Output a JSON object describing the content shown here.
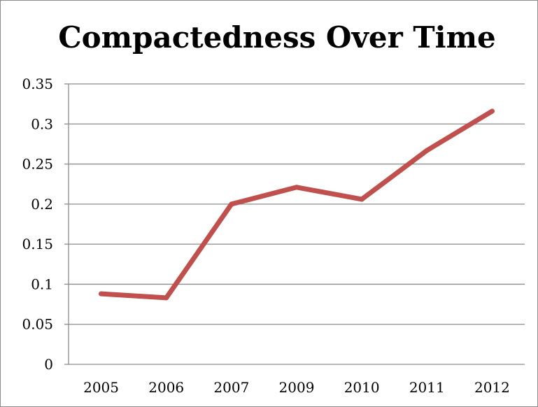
{
  "chart_data": {
    "type": "line",
    "title": "Compactedness Over Time",
    "xlabel": "",
    "ylabel": "",
    "categories": [
      "2005",
      "2006",
      "2007",
      "2009",
      "2010",
      "2011",
      "2012"
    ],
    "series": [
      {
        "values": [
          0.088,
          0.083,
          0.2,
          0.221,
          0.206,
          0.267,
          0.316
        ]
      }
    ],
    "ylim": [
      0,
      0.35
    ],
    "yticks": [
      "0",
      "0.05",
      "0.1",
      "0.15",
      "0.2",
      "0.25",
      "0.3",
      "0.35"
    ],
    "grid": true,
    "legend": "none",
    "colors": {
      "line": "#c0504d",
      "grid": "#8c8c8c",
      "axis": "#8c8c8c"
    }
  }
}
